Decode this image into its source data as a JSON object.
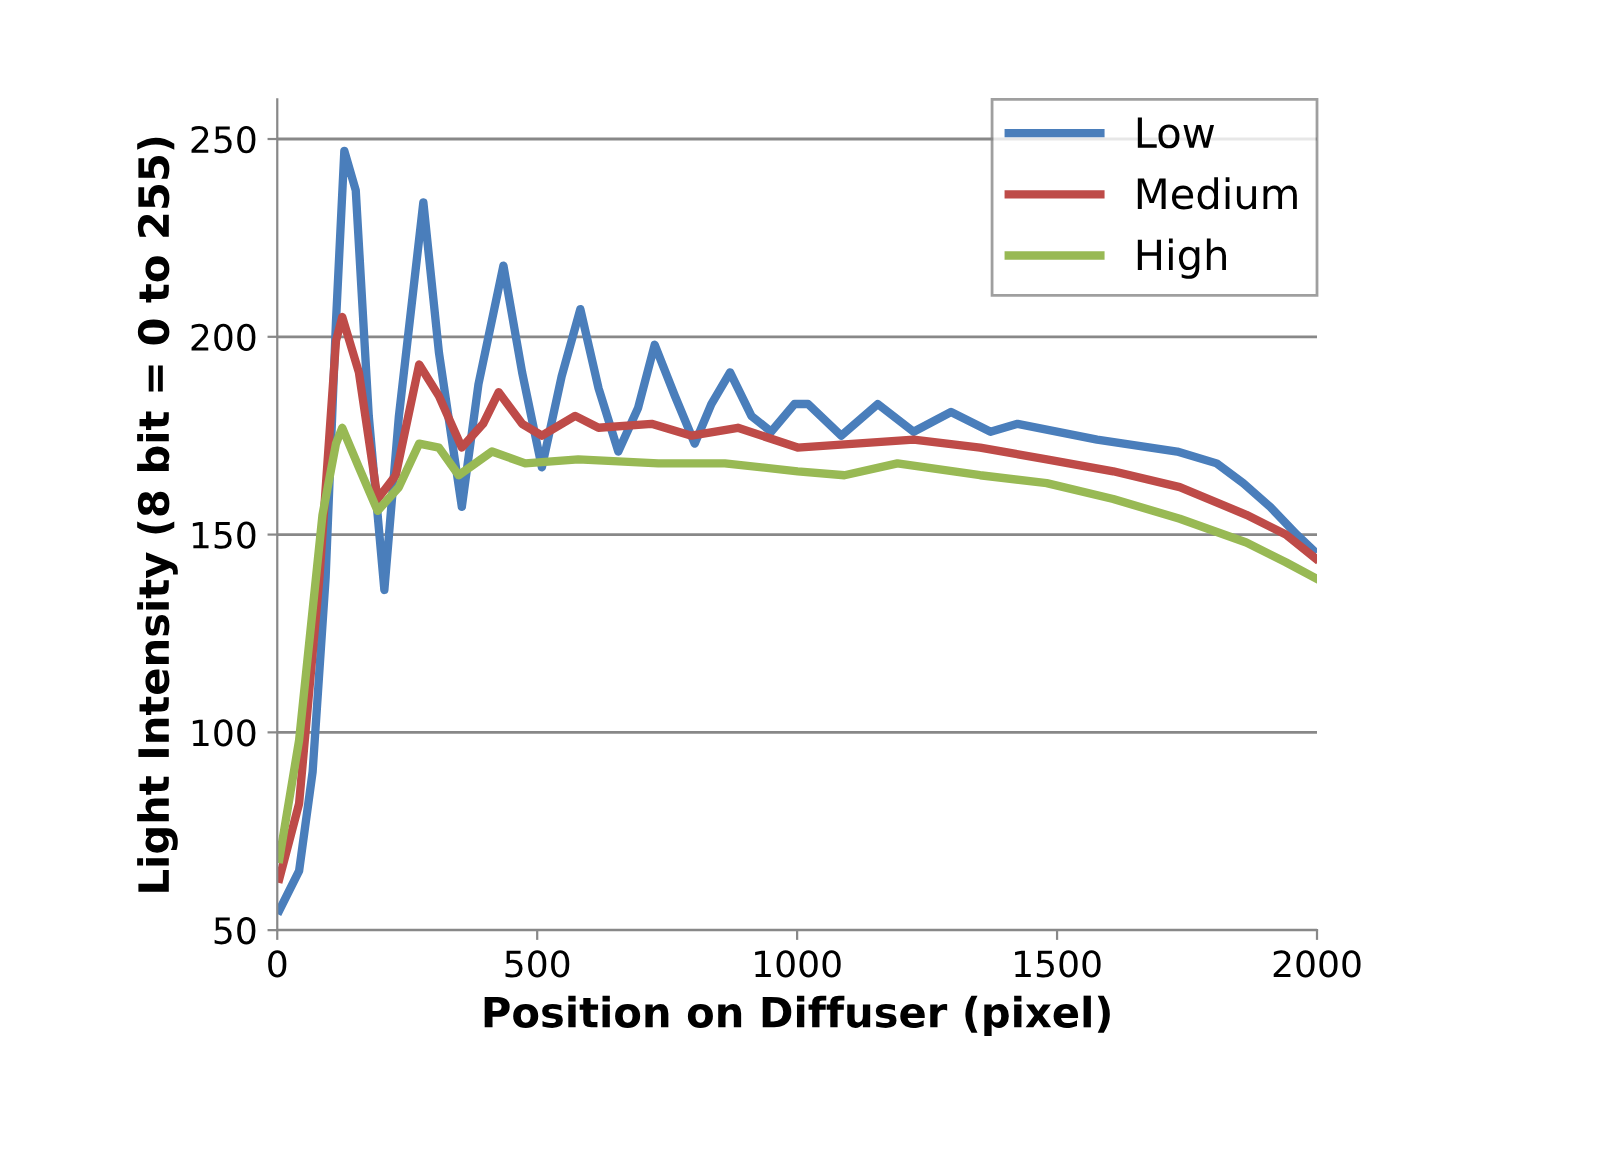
{
  "chart_data": {
    "type": "line",
    "xlabel": "Position on Diffuser (pixel)",
    "ylabel": "Light Intensity (8 bit = 0 to 255)",
    "xlim": [
      0,
      2000
    ],
    "xticks": [
      0,
      500,
      1000,
      1500,
      2000
    ],
    "ylim": [
      50,
      260
    ],
    "yticks": [
      50,
      100,
      150,
      200,
      250
    ],
    "grid": "y",
    "legend": "top right",
    "marker": "none",
    "line_style": "solid",
    "series": [
      {
        "name": "Low",
        "color": "#4a7ebb",
        "x": [
          4,
          42,
          68,
          93,
          113,
          129,
          151,
          176,
          206,
          234,
          281,
          311,
          355,
          387,
          435,
          471,
          509,
          547,
          583,
          618,
          656,
          694,
          726,
          765,
          803,
          835,
          871,
          912,
          950,
          995,
          1021,
          1085,
          1155,
          1224,
          1296,
          1372,
          1424,
          1577,
          1731,
          1807,
          1858,
          1910,
          1961,
          1993
        ],
        "values": [
          55,
          65,
          90,
          139,
          204,
          247,
          237,
          180,
          136,
          180,
          234,
          196,
          157,
          188,
          218,
          191,
          167,
          190,
          207,
          187,
          171,
          182,
          198,
          185,
          173,
          183,
          191,
          180,
          176,
          183,
          183,
          175,
          183,
          176,
          181,
          176,
          178,
          174,
          171,
          168,
          163,
          157,
          150,
          146
        ]
      },
      {
        "name": "Medium",
        "color": "#be4b48",
        "x": [
          4,
          42,
          81,
          113,
          125,
          157,
          193,
          228,
          273,
          311,
          355,
          396,
          426,
          471,
          509,
          573,
          618,
          720,
          797,
          886,
          1001,
          1224,
          1352,
          1480,
          1608,
          1736,
          1864,
          1940,
          1997
        ],
        "values": [
          63,
          82,
          139,
          199,
          205,
          191,
          159,
          165,
          193,
          185,
          172,
          178,
          186,
          178,
          175,
          180,
          177,
          178,
          175,
          177,
          172,
          174,
          172,
          169,
          166,
          162,
          155,
          150,
          144
        ]
      },
      {
        "name": "High",
        "color": "#98b954",
        "x": [
          4,
          42,
          87,
          113,
          125,
          157,
          193,
          234,
          273,
          311,
          349,
          413,
          477,
          579,
          733,
          861,
          1001,
          1091,
          1193,
          1352,
          1480,
          1608,
          1736,
          1864,
          1940,
          1997
        ],
        "values": [
          68,
          98,
          155,
          173,
          177,
          167,
          156,
          162,
          173,
          172,
          165,
          171,
          168,
          169,
          168,
          168,
          166,
          165,
          168,
          165,
          163,
          159,
          154,
          148,
          143,
          139
        ]
      }
    ]
  }
}
